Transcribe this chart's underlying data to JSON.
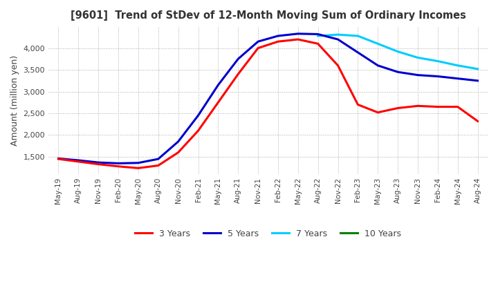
{
  "title": "[9601]  Trend of StDev of 12-Month Moving Sum of Ordinary Incomes",
  "ylabel": "Amount (million yen)",
  "ylim": [
    1100,
    4500
  ],
  "yticks": [
    1500,
    2000,
    2500,
    3000,
    3500,
    4000
  ],
  "legend_labels": [
    "3 Years",
    "5 Years",
    "7 Years",
    "10 Years"
  ],
  "line_colors": [
    "#ff0000",
    "#0000cd",
    "#00ccff",
    "#008000"
  ],
  "line_width": 2.2,
  "x_labels": [
    "May-19",
    "Aug-19",
    "Nov-19",
    "Feb-20",
    "May-20",
    "Aug-20",
    "Nov-20",
    "Feb-21",
    "May-21",
    "Aug-21",
    "Nov-21",
    "Feb-22",
    "May-22",
    "Aug-22",
    "Nov-22",
    "Feb-23",
    "May-23",
    "Aug-23",
    "Nov-23",
    "Feb-24",
    "May-24",
    "Aug-24"
  ],
  "series_3y": [
    1450,
    1390,
    1330,
    1280,
    1240,
    1300,
    1600,
    2100,
    2750,
    3400,
    4000,
    4150,
    4200,
    4100,
    3600,
    2700,
    2520,
    2620,
    2670,
    2650,
    2650,
    2320
  ],
  "series_5y": [
    1460,
    1420,
    1370,
    1350,
    1360,
    1450,
    1850,
    2450,
    3150,
    3750,
    4150,
    4280,
    4330,
    4320,
    4200,
    3900,
    3600,
    3450,
    3380,
    3350,
    3300,
    3250
  ],
  "series_7y": [
    null,
    null,
    null,
    null,
    null,
    null,
    null,
    null,
    null,
    null,
    null,
    null,
    null,
    4280,
    4310,
    4280,
    4100,
    3920,
    3780,
    3700,
    3600,
    3520
  ],
  "series_10y": [
    null,
    null,
    null,
    null,
    null,
    null,
    null,
    null,
    null,
    null,
    null,
    null,
    null,
    null,
    null,
    null,
    null,
    null,
    null,
    null,
    null,
    null
  ],
  "background_color": "#ffffff",
  "grid_color": "#aaaaaa"
}
